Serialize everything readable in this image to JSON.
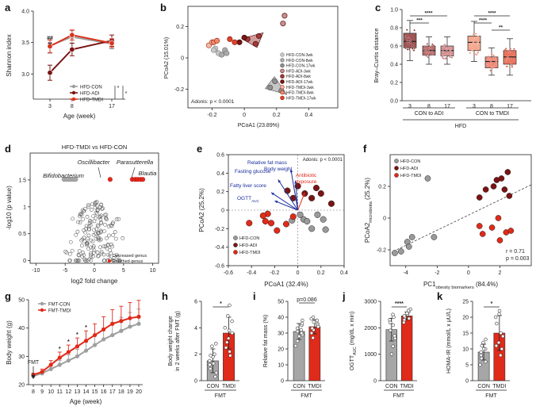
{
  "colors": {
    "con": "#9e9e9e",
    "adi": "#7a1414",
    "tmdi": "#d9341f",
    "red": "#e02a1a",
    "blue": "#1a2e9c",
    "grey_mark": "#9a9a9a",
    "dark": "#222222"
  },
  "panel_letters": [
    "a",
    "b",
    "c",
    "d",
    "e",
    "f",
    "g",
    "h",
    "i",
    "j",
    "k"
  ],
  "chart_data": [
    {
      "id": "a",
      "type": "line",
      "ylabel": "Shannon index",
      "xlabel": "Age (week)",
      "x": [
        3,
        8,
        17
      ],
      "ylim": [
        2.6,
        4.0
      ],
      "yticks": [
        "3.0",
        "3.5",
        "4.0"
      ],
      "series": [
        {
          "name": "HFD-CON",
          "values": [
            3.45,
            3.59,
            3.48
          ],
          "err": [
            0.12,
            0.1,
            0.08
          ],
          "color": "con"
        },
        {
          "name": "HFD-ADI",
          "values": [
            3.02,
            3.39,
            3.53
          ],
          "err": [
            0.12,
            0.1,
            0.09
          ],
          "color": "adi"
        },
        {
          "name": "HFD-TMDI",
          "values": [
            3.44,
            3.62,
            3.49
          ],
          "err": [
            0.1,
            0.08,
            0.07
          ],
          "color": "tmdi"
        }
      ],
      "annotations": [
        "##",
        "**",
        "*",
        "*"
      ]
    },
    {
      "id": "b",
      "type": "scatter",
      "xlabel": "PCoA1 (23.89%)",
      "ylabel": "PCoA2 (15.01%)",
      "xticks": [
        "-0.2",
        "0",
        "0.2",
        "0.4"
      ],
      "yticks": [
        "-0.2",
        "0",
        "0.2"
      ],
      "xlim": [
        -0.35,
        0.58
      ],
      "ylim": [
        -0.32,
        0.33
      ],
      "stat": "Adonis: p < 0.0001",
      "groups": [
        {
          "name": "HFD-CON-3wk",
          "points": [
            [
              -0.18,
              0.06
            ],
            [
              -0.16,
              0.03
            ],
            [
              -0.19,
              0.05
            ]
          ],
          "color": "#c8c8c8",
          "edge": "#8a8a8a"
        },
        {
          "name": "HFD-CON-8wk",
          "points": [
            [
              -0.14,
              0.02
            ],
            [
              -0.12,
              0.05
            ],
            [
              -0.11,
              0.03
            ]
          ],
          "color": "#ababab",
          "edge": "#7a7a7a"
        },
        {
          "name": "HFD-CON-17wk",
          "points": [
            [
              0.16,
              -0.19
            ],
            [
              0.19,
              -0.15
            ],
            [
              0.23,
              -0.21
            ]
          ],
          "color": "#8f8f8f",
          "edge": "#555555"
        },
        {
          "name": "HFD-ADI-3wk",
          "points": [
            [
              0.24,
              0.22
            ],
            [
              0.25,
              0.27
            ]
          ],
          "color": "#c69090",
          "edge": "#5a1010"
        },
        {
          "name": "HFD-ADI-8wk",
          "points": [
            [
              0.02,
              0.12
            ],
            [
              0.07,
              0.09
            ],
            [
              0.09,
              0.14
            ]
          ],
          "color": "#a33a3a",
          "edge": "#4a0a0a"
        },
        {
          "name": "HFD-ADI-17wk",
          "points": [
            [
              -0.03,
              0.1
            ],
            [
              0.0,
              0.13
            ]
          ],
          "color": "#7a1414",
          "edge": "#3a0505"
        },
        {
          "name": "HFD-TMDI-3wk",
          "points": [
            [
              -0.22,
              0.08
            ],
            [
              -0.2,
              0.1
            ]
          ],
          "color": "#f4b9a8",
          "edge": "#b23a20"
        },
        {
          "name": "HFD-TMDI-8wk",
          "points": [
            [
              -0.19,
              0.1
            ],
            [
              -0.17,
              0.11
            ]
          ],
          "color": "#ee8a6e",
          "edge": "#a02a10"
        },
        {
          "name": "HFD-TMDI-17wk",
          "points": [
            [
              -0.09,
              0.12
            ],
            [
              -0.06,
              0.1
            ]
          ],
          "color": "#e0442a",
          "edge": "#8a1808"
        }
      ]
    },
    {
      "id": "c",
      "type": "box",
      "ylabel": "Bray–Curtis distance",
      "ylim": [
        0.0,
        1.0
      ],
      "yticks": [
        "0.0",
        "0.2",
        "0.4",
        "0.6",
        "0.8",
        "1.0"
      ],
      "categories": [
        "3",
        "8",
        "17",
        "3",
        "8",
        "17"
      ],
      "groups": [
        "CON to ADI",
        "CON to TMDI"
      ],
      "group_label": "HFD",
      "boxes": [
        {
          "q1": 0.58,
          "median": 0.65,
          "q3": 0.74,
          "min": 0.44,
          "max": 0.88,
          "color": "#7f1c1c"
        },
        {
          "q1": 0.5,
          "median": 0.55,
          "q3": 0.6,
          "min": 0.4,
          "max": 0.7,
          "color": "#a33a3a"
        },
        {
          "q1": 0.49,
          "median": 0.55,
          "q3": 0.6,
          "min": 0.4,
          "max": 0.7,
          "color": "#c66b6b"
        },
        {
          "q1": 0.55,
          "median": 0.64,
          "q3": 0.71,
          "min": 0.43,
          "max": 0.87,
          "color": "#f08a6a"
        },
        {
          "q1": 0.36,
          "median": 0.43,
          "q3": 0.48,
          "min": 0.28,
          "max": 0.58,
          "color": "#e8604a"
        },
        {
          "q1": 0.4,
          "median": 0.48,
          "q3": 0.55,
          "min": 0.28,
          "max": 0.68,
          "color": "#e0442a"
        }
      ],
      "sig": [
        "***",
        "****",
        "****",
        "****",
        "**"
      ]
    },
    {
      "id": "d",
      "type": "volcano",
      "title": "HFD-TMDI vs HFD-CON",
      "xlabel": "log2 fold change",
      "ylabel": "-log10 (p value)",
      "xlim": [
        -11,
        11
      ],
      "ylim": [
        -0.05,
        2.0
      ],
      "xticks": [
        "-10",
        "-5",
        "0",
        "5",
        "10"
      ],
      "yticks": [
        "0",
        "0.5",
        "1",
        "1.5"
      ],
      "labels": [
        "Bifidobacterium",
        "Oscillibacter",
        "Parasutterella",
        "Blautia"
      ],
      "legend": [
        "Decreased genus",
        "Enriched genus"
      ]
    },
    {
      "id": "e",
      "type": "biplot",
      "xlabel": "PCoA1 (32.4%)",
      "ylabel": "PCoA2 (25.2%)",
      "xlim": [
        -0.6,
        0.4
      ],
      "ylim": [
        -0.6,
        0.6
      ],
      "xticks": [
        "-0.6",
        "-0.4",
        "-0.2",
        "0",
        "0.2",
        "0.4"
      ],
      "yticks": [
        "-0.6",
        "-0.4",
        "-0.2",
        "0",
        "0.2",
        "0.4",
        "0.6"
      ],
      "stat": "Adonis: p < 0.0001",
      "arrows": [
        {
          "label": "Relative fat mass",
          "x": -0.06,
          "y": 0.44,
          "color": "blue"
        },
        {
          "label": "Body weight",
          "x": -0.02,
          "y": 0.32,
          "color": "blue"
        },
        {
          "label": "Fasting glucose",
          "x": -0.17,
          "y": 0.33,
          "color": "blue"
        },
        {
          "label": "Fatty liver score",
          "x": -0.23,
          "y": 0.19,
          "color": "blue"
        },
        {
          "label": "OGTT",
          "x": -0.2,
          "y": 0.1,
          "color": "blue"
        },
        {
          "label": "Antibiotic exposure",
          "x": 0.06,
          "y": 0.19,
          "color": "red"
        }
      ],
      "ogtt_sub": "AUC",
      "points": {
        "HFD-CON": [
          [
            -0.05,
            -0.11
          ],
          [
            0.05,
            -0.1
          ],
          [
            0.08,
            -0.12
          ],
          [
            0.12,
            -0.2
          ],
          [
            0.22,
            -0.1
          ],
          [
            0.24,
            -0.21
          ],
          [
            0.17,
            -0.05
          ],
          [
            0.02,
            -0.05
          ]
        ],
        "HFD-ADI": [
          [
            -0.04,
            0.13
          ],
          [
            0.0,
            0.26
          ],
          [
            -0.09,
            0.21
          ],
          [
            0.06,
            0.18
          ],
          [
            0.2,
            0.18
          ],
          [
            0.29,
            0.07
          ],
          [
            0.16,
            0.24
          ],
          [
            0.12,
            0.13
          ]
        ],
        "HFD-TMDI": [
          [
            -0.26,
            -0.04
          ],
          [
            -0.3,
            -0.06
          ],
          [
            -0.23,
            -0.14
          ],
          [
            -0.28,
            -0.12
          ],
          [
            -0.42,
            -0.14
          ],
          [
            -0.1,
            -0.15
          ],
          [
            -0.18,
            -0.22
          ],
          [
            -0.04,
            -0.07
          ]
        ]
      },
      "legend": [
        "HFD-CON",
        "HFD-ADI",
        "HFD-TMDI"
      ]
    },
    {
      "id": "f",
      "type": "scatter",
      "xlabel_main": "PC1",
      "xlabel_sub": "obesity biomarkers",
      "xlabel_tail": " (84.4%)",
      "ylabel_main": "PCoA2",
      "ylabel_sub": "microbiota",
      "ylabel_tail": " (25.2%)",
      "xlim": [
        -5,
        4
      ],
      "ylim": [
        -0.3,
        0.4
      ],
      "xticks": [
        "-4",
        "-2",
        "0",
        "2"
      ],
      "yticks": [
        "-0.2",
        "0",
        "0.2"
      ],
      "stat_r": "r = 0.71",
      "stat_p": "p = 0.003",
      "points": {
        "HFD-CON": [
          [
            -4.7,
            -0.22
          ],
          [
            -4.3,
            -0.21
          ],
          [
            -3.9,
            -0.15
          ],
          [
            -3.6,
            -0.12
          ],
          [
            -3.8,
            -0.18
          ],
          [
            -2.2,
            -0.12
          ],
          [
            -2.6,
            0.25
          ]
        ],
        "HFD-ADI": [
          [
            0.7,
            0.13
          ],
          [
            1.6,
            0.2
          ],
          [
            1.8,
            0.24
          ],
          [
            2.1,
            0.25
          ],
          [
            2.5,
            0.29
          ],
          [
            1.1,
            0.18
          ],
          [
            2.3,
            0.18
          ],
          [
            2.6,
            0.14
          ]
        ],
        "HFD-TMDI": [
          [
            0.7,
            -0.05
          ],
          [
            0.9,
            -0.1
          ],
          [
            1.5,
            -0.06
          ],
          [
            1.9,
            0.0
          ],
          [
            2.0,
            -0.14
          ],
          [
            2.4,
            -0.09
          ],
          [
            2.7,
            -0.08
          ]
        ]
      },
      "legend": [
        "HFD-CON",
        "HFD-ADI",
        "HFD-TMDI"
      ]
    },
    {
      "id": "g",
      "type": "line",
      "ylabel": "Body weight (g)",
      "xlabel": "Age (week)",
      "x": [
        8,
        9,
        10,
        11,
        12,
        13,
        14,
        15,
        16,
        17,
        18,
        19,
        20
      ],
      "xticks": [
        "8",
        "9",
        "10",
        "11",
        "12",
        "13",
        "14",
        "15",
        "16",
        "17",
        "18",
        "19",
        "20"
      ],
      "ylim": [
        20,
        50
      ],
      "yticks": [
        "20",
        "30",
        "40",
        "50"
      ],
      "series": [
        {
          "name": "FMT-CON",
          "values": [
            23.0,
            24.0,
            25.5,
            27.0,
            28.5,
            30.0,
            32.0,
            34.0,
            36.0,
            37.5,
            39.0,
            40.5,
            41.5
          ],
          "err": [
            0.5,
            0.8,
            1.2,
            1.5,
            2.0,
            2.5,
            3.0,
            3.5,
            4.0,
            4.5,
            4.8,
            5.0,
            5.2
          ],
          "color": "con"
        },
        {
          "name": "FMT-TMDI",
          "values": [
            23.5,
            24.5,
            27.0,
            29.5,
            31.5,
            33.5,
            35.5,
            37.5,
            39.5,
            41.5,
            42.5,
            43.5,
            44.0
          ],
          "err": [
            0.5,
            1.0,
            1.5,
            2.0,
            2.5,
            3.0,
            3.5,
            4.0,
            4.5,
            5.0,
            5.2,
            5.5,
            5.8
          ],
          "color": "red"
        }
      ],
      "sig_weeks": [
        11,
        12,
        13,
        14
      ],
      "sig_labels": [
        "*",
        "*",
        "*",
        "*"
      ],
      "event": "FMT"
    },
    {
      "id": "h",
      "type": "bar",
      "ylabel": "Body weight change in 2 weeks after FMT (g)",
      "categories": [
        "CON",
        "TMDI"
      ],
      "values": [
        1.5,
        3.6
      ],
      "err": [
        0.9,
        1.2
      ],
      "ylim": [
        0,
        6
      ],
      "yticks": [
        "0",
        "2",
        "4",
        "6"
      ],
      "xgroup": "FMT",
      "sig": "*",
      "dots": [
        [
          2.6,
          1.3,
          0.9,
          0.6,
          1.8,
          1.2,
          2.0,
          0.3,
          1.9,
          1.5,
          2.8
        ],
        [
          4.5,
          3.8,
          2.5,
          5.7,
          3.2,
          4.0,
          1.9,
          2.9,
          3.6,
          2.2,
          4.9
        ]
      ]
    },
    {
      "id": "i",
      "type": "bar",
      "ylabel": "Relative fat mass (%)",
      "categories": [
        "CON",
        "TMDI"
      ],
      "values": [
        31,
        34
      ],
      "err": [
        5,
        4.5
      ],
      "ylim": [
        0,
        50
      ],
      "yticks": [
        "0",
        "10",
        "20",
        "30",
        "40",
        "50"
      ],
      "xgroup": "FMT",
      "sig": "p=0.086",
      "dots": [
        [
          35,
          32,
          29,
          25,
          38,
          30,
          28,
          33,
          22,
          36,
          31
        ],
        [
          39,
          36,
          32,
          27,
          38,
          35,
          30,
          33,
          40,
          34,
          37
        ]
      ]
    },
    {
      "id": "j",
      "type": "bar",
      "ylabel_main": "OGTT",
      "ylabel_sub": "AUC",
      "ylabel_tail": " (mg/dL x min)",
      "categories": [
        "CON",
        "TMDI"
      ],
      "values": [
        1930,
        2450
      ],
      "err": [
        430,
        150
      ],
      "ylim": [
        0,
        3000
      ],
      "yticks": [
        "0",
        "1000",
        "2000",
        "3000"
      ],
      "xgroup": "FMT",
      "sig": "****",
      "dots": [
        [
          2300,
          1600,
          1300,
          2500,
          1900,
          1000,
          2200,
          2400,
          1700,
          2100
        ],
        [
          2600,
          2400,
          2300,
          2500,
          2700,
          2450,
          2350,
          2550,
          2200,
          2650
        ]
      ]
    },
    {
      "id": "k",
      "type": "bar",
      "ylabel": "HOMA-IR (mmol/L x μU/L)",
      "categories": [
        "CON",
        "TMDI"
      ],
      "values": [
        9,
        15
      ],
      "err": [
        2.5,
        5.5
      ],
      "ylim": [
        0,
        25
      ],
      "yticks": [
        "0",
        "5",
        "10",
        "15",
        "20",
        "25"
      ],
      "xgroup": "FMT",
      "sig": "*",
      "dots": [
        [
          10,
          8,
          12,
          5,
          13,
          7,
          9,
          11,
          6,
          10
        ],
        [
          18,
          12,
          21,
          10,
          15,
          22,
          8,
          14,
          20,
          11
        ]
      ]
    }
  ]
}
